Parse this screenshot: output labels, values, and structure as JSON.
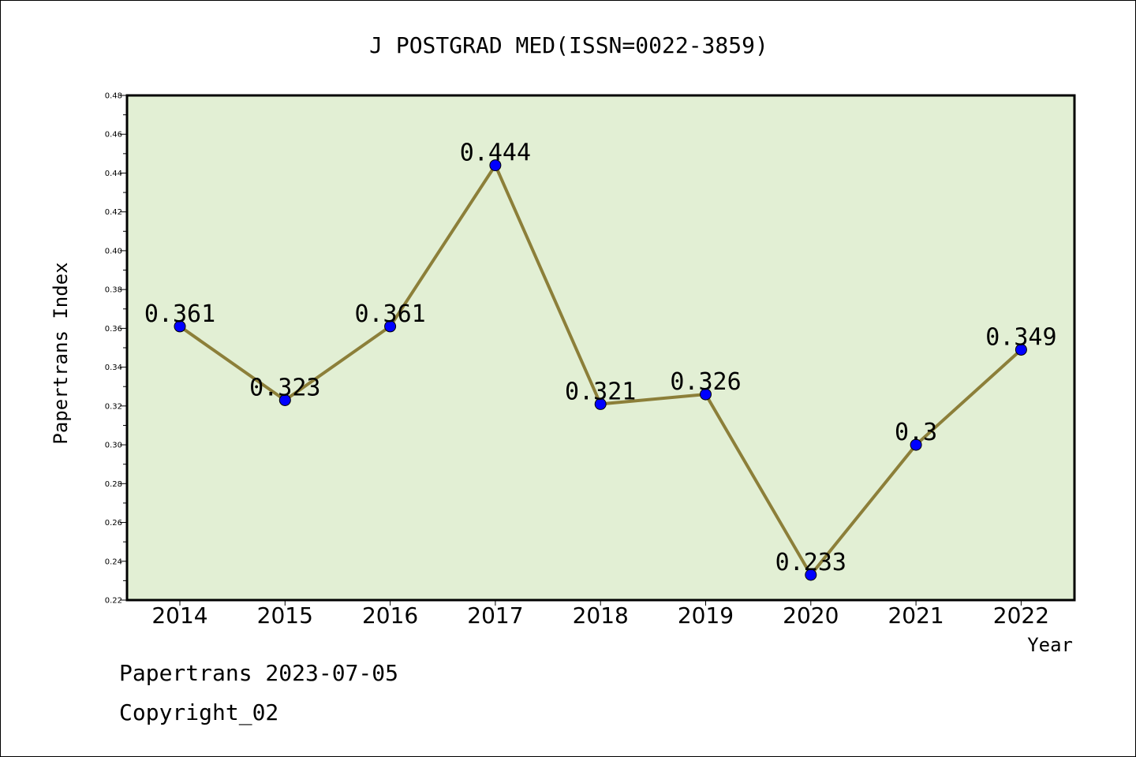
{
  "chart_data": {
    "type": "line",
    "title": "J POSTGRAD MED(ISSN=0022-3859)",
    "xlabel": "Year",
    "ylabel": "Papertrans Index",
    "categories": [
      "2014",
      "2015",
      "2016",
      "2017",
      "2018",
      "2019",
      "2020",
      "2021",
      "2022"
    ],
    "values": [
      0.361,
      0.323,
      0.361,
      0.444,
      0.321,
      0.326,
      0.233,
      0.3,
      0.349
    ],
    "value_labels": [
      "0.361",
      "0.323",
      "0.361",
      "0.444",
      "0.321",
      "0.326",
      "0.233",
      "0.3",
      "0.349"
    ],
    "ylim": [
      0.22,
      0.48
    ],
    "yticks": [
      "0.22",
      "0.24",
      "0.26",
      "0.28",
      "0.30",
      "0.32",
      "0.34",
      "0.36",
      "0.38",
      "0.40",
      "0.42",
      "0.44",
      "0.46",
      "0.48"
    ],
    "grid": false,
    "colors": {
      "plot_background": "#e2efd4",
      "line": "#8c7f39",
      "marker": "#0000ff",
      "axes": "#000000"
    }
  },
  "footer": {
    "source": "Papertrans 2023-07-05",
    "copyright": "Copyright_02"
  }
}
